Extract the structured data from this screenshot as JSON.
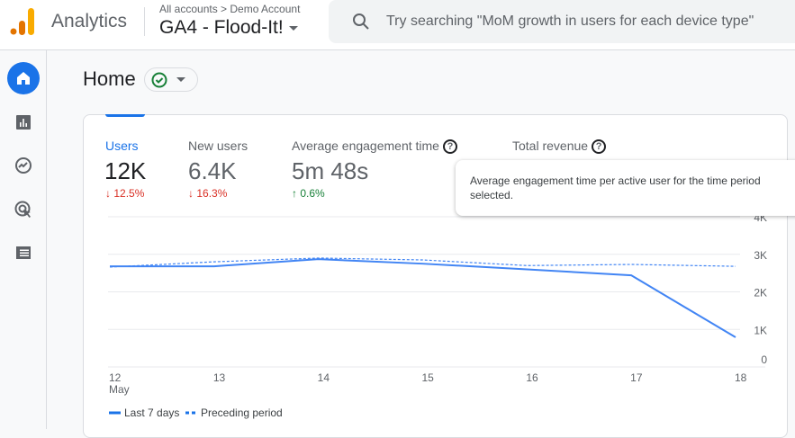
{
  "header": {
    "app_name": "Analytics",
    "breadcrumb": "All accounts > Demo Account",
    "property": "GA4 - Flood-It!",
    "search_placeholder": "Try searching \"MoM growth in users for each device type\""
  },
  "sidebar": {
    "items": [
      {
        "icon": "home-icon",
        "active": true
      },
      {
        "icon": "reports-icon"
      },
      {
        "icon": "explore-icon"
      },
      {
        "icon": "advertising-icon"
      },
      {
        "icon": "configure-icon"
      }
    ]
  },
  "page": {
    "title": "Home",
    "status": "check-circle-icon"
  },
  "metrics": [
    {
      "label": "Users",
      "value": "12K",
      "delta": "12.5%",
      "direction": "down",
      "active": true
    },
    {
      "label": "New users",
      "value": "6.4K",
      "delta": "16.3%",
      "direction": "down"
    },
    {
      "label": "Average engagement time",
      "value": "5m 48s",
      "delta": "0.6%",
      "direction": "up"
    },
    {
      "label": "Total revenue"
    }
  ],
  "tooltip": "Average engagement time per active user for the time period selected.",
  "colors": {
    "accent": "#1a73e8",
    "down": "#d93025",
    "up": "#188038",
    "line": "#4285f4"
  },
  "chart_data": {
    "type": "line",
    "categories": [
      "12",
      "13",
      "14",
      "15",
      "16",
      "17",
      "18"
    ],
    "x_sublabel": "May",
    "yticks": [
      "0",
      "1K",
      "2K",
      "3K",
      "4K"
    ],
    "ylim": [
      0,
      4000
    ],
    "grid": true,
    "legend_placement": "bottom-left",
    "series": [
      {
        "name": "Last 7 days",
        "style": "solid",
        "values": [
          2680,
          2680,
          2870,
          2750,
          2600,
          2440,
          790
        ]
      },
      {
        "name": "Preceding period",
        "style": "dashed",
        "values": [
          2660,
          2800,
          2900,
          2850,
          2700,
          2730,
          2680
        ]
      }
    ]
  }
}
